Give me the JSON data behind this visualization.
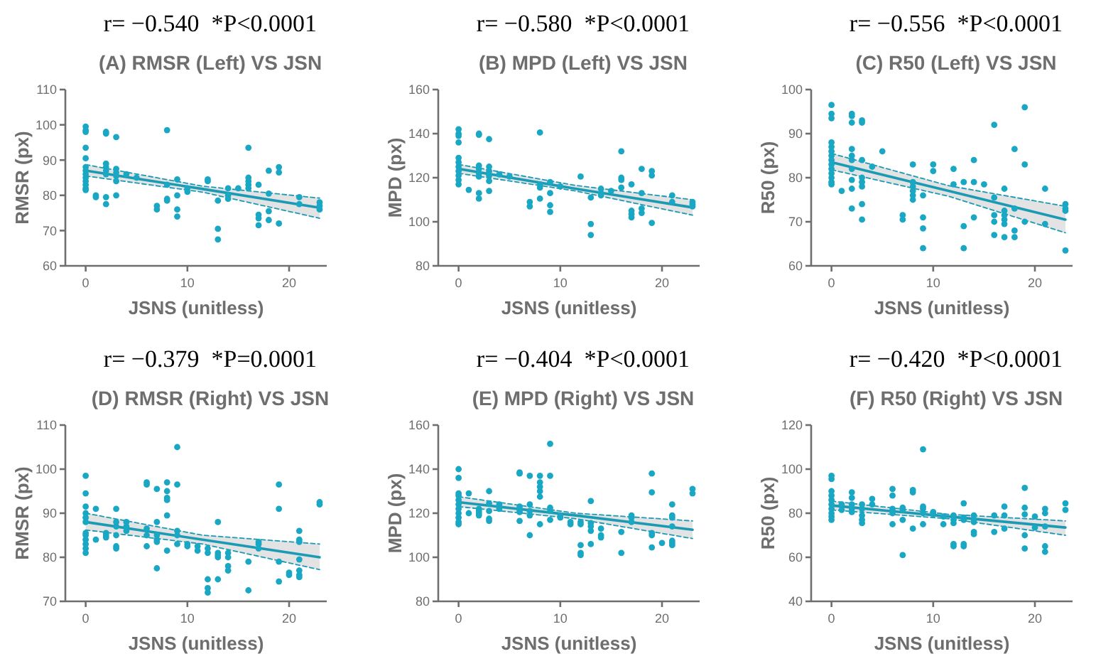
{
  "chart_data": [
    {
      "type": "scatter",
      "title": "r= −0.540  *P<0.0001",
      "subtitle": "(A) RMSR (Left) VS JSN",
      "xlabel": "JSNS (unitless)",
      "ylabel": "RMSR (px)",
      "xlim": [
        -2,
        23.7
      ],
      "xticks": [
        0,
        10,
        20
      ],
      "ylim": [
        60,
        110
      ],
      "yticks": [
        60,
        70,
        80,
        90,
        100,
        110
      ],
      "marker": "circle",
      "series": [
        {
          "type": "scatter",
          "color": "#1aa7c4",
          "x": [
            0,
            0,
            0,
            0,
            0,
            0,
            0,
            0,
            0,
            0,
            0,
            0,
            0,
            1,
            1,
            2,
            2,
            2,
            2,
            2,
            2,
            2,
            2,
            3,
            3,
            3,
            3,
            3,
            3,
            4,
            5,
            7,
            7,
            8,
            8,
            8,
            8,
            9,
            9,
            9,
            9,
            10,
            10,
            12,
            12,
            13,
            13,
            13,
            14,
            14,
            14,
            15,
            16,
            16,
            16,
            16,
            16,
            17,
            17,
            17,
            17,
            18,
            18,
            18,
            18,
            19,
            19,
            19,
            21,
            21,
            23,
            23,
            23
          ],
          "values": [
            99.5,
            98.5,
            98,
            93.5,
            90.5,
            88,
            87,
            86,
            85,
            84,
            83,
            82,
            81.5,
            80,
            79.5,
            98,
            97.5,
            89,
            88,
            87,
            86,
            79.5,
            77.5,
            96.5,
            87.5,
            86.5,
            85.5,
            84,
            80,
            86,
            85,
            77,
            76,
            98.5,
            83,
            79,
            78.5,
            84.5,
            80,
            76,
            74,
            82,
            81,
            84.5,
            84,
            78.5,
            70.5,
            67.5,
            82,
            80,
            79,
            82,
            93.5,
            85,
            84,
            83,
            82,
            83,
            74.5,
            73.5,
            71.5,
            87,
            80.5,
            75.5,
            73,
            88,
            86.5,
            72,
            79.5,
            77.5,
            78,
            77,
            76
          ]
        },
        {
          "type": "line",
          "color": "#1b9ab4",
          "marker": "none",
          "x": [
            0,
            11.5,
            23
          ],
          "values": [
            87,
            81.8,
            76.5
          ],
          "lower": [
            85.5,
            80.9,
            73.5
          ],
          "upper": [
            88.7,
            82.6,
            79.2
          ]
        },
        {
          "type": "line",
          "color": "#1b9ab4",
          "marker": "none",
          "line_style": "dashed",
          "x": [
            0,
            11.5,
            23
          ],
          "values": [
            85.5,
            80.9,
            73.5
          ]
        },
        {
          "type": "line",
          "color": "#1b9ab4",
          "marker": "none",
          "line_style": "dashed",
          "x": [
            0,
            11.5,
            23
          ],
          "values": [
            88.7,
            82.6,
            79.2
          ]
        }
      ]
    },
    {
      "type": "scatter",
      "title": "r= −0.580  *P<0.0001",
      "subtitle": "(B) MPD (Left) VS JSN",
      "xlabel": "JSNS (unitless)",
      "ylabel": "MPD (px)",
      "xlim": [
        -2,
        23.7
      ],
      "xticks": [
        0,
        10,
        20
      ],
      "ylim": [
        80,
        160
      ],
      "yticks": [
        80,
        100,
        120,
        140,
        160
      ],
      "marker": "circle",
      "series": [
        {
          "type": "scatter",
          "color": "#1aa7c4",
          "x": [
            0,
            0,
            0,
            0,
            0,
            0,
            0,
            0,
            0,
            0,
            0,
            1,
            2,
            2,
            2,
            2,
            2,
            2,
            2,
            2,
            3,
            3,
            3,
            3,
            3,
            3,
            4,
            5,
            7,
            7,
            8,
            8,
            8,
            8,
            9,
            9,
            9,
            9,
            10,
            12,
            13,
            13,
            13,
            14,
            14,
            14,
            15,
            16,
            16,
            16,
            16,
            17,
            17,
            17,
            17,
            18,
            18,
            18,
            18,
            19,
            19,
            19,
            21,
            21,
            23,
            23,
            23
          ],
          "values": [
            142,
            140,
            139,
            136,
            129,
            127,
            125,
            123,
            121,
            119,
            117,
            114.5,
            140,
            139.5,
            125.5,
            124,
            122,
            120.5,
            113,
            110.5,
            137.5,
            125,
            123,
            121,
            118.5,
            114,
            121.5,
            120.5,
            109,
            107,
            140.5,
            117,
            115.5,
            110.5,
            118,
            113,
            107.5,
            104.5,
            116,
            120.5,
            111,
            99,
            94,
            115,
            113,
            112,
            114,
            132,
            120,
            119,
            115.5,
            117,
            105,
            103.5,
            102,
            124,
            113,
            106,
            104,
            123,
            121,
            99.5,
            112,
            109,
            109,
            108,
            107
          ]
        },
        {
          "type": "line",
          "color": "#1b9ab4",
          "marker": "none",
          "x": [
            0,
            11.5,
            23
          ],
          "values": [
            124,
            115,
            106.5
          ],
          "lower": [
            122,
            114,
            103
          ],
          "upper": [
            126,
            116.5,
            110
          ]
        },
        {
          "type": "line",
          "color": "#1b9ab4",
          "marker": "none",
          "line_style": "dashed",
          "x": [
            0,
            11.5,
            23
          ],
          "values": [
            122,
            114,
            103
          ]
        },
        {
          "type": "line",
          "color": "#1b9ab4",
          "marker": "none",
          "line_style": "dashed",
          "x": [
            0,
            11.5,
            23
          ],
          "values": [
            126,
            116.5,
            110
          ]
        }
      ]
    },
    {
      "type": "scatter",
      "title": "r= −0.556  *P<0.0001",
      "subtitle": "(C) R50 (Left) VS JSN",
      "xlabel": "JSNS (unitless)",
      "ylabel": "R50 (px)",
      "xlim": [
        -2,
        23.7
      ],
      "xticks": [
        0,
        10,
        20
      ],
      "ylim": [
        60,
        100
      ],
      "yticks": [
        60,
        70,
        80,
        90,
        100
      ],
      "marker": "circle",
      "series": [
        {
          "type": "scatter",
          "color": "#1aa7c4",
          "x": [
            0,
            0,
            0,
            0,
            0,
            0,
            0,
            0,
            0,
            0,
            0,
            0,
            0,
            0,
            1,
            2,
            2,
            2,
            2,
            2,
            2,
            2,
            2,
            2,
            2,
            3,
            3,
            3,
            3,
            3,
            3,
            3,
            3,
            4,
            5,
            7,
            7,
            8,
            8,
            8,
            8,
            8,
            8,
            9,
            9,
            9,
            9,
            10,
            10,
            12,
            12,
            13,
            13,
            13,
            14,
            14,
            14,
            15,
            16,
            16,
            16,
            16,
            16,
            17,
            17,
            17,
            17,
            17,
            17,
            18,
            18,
            18,
            18,
            19,
            19,
            19,
            21,
            21,
            23,
            23,
            23,
            23
          ],
          "values": [
            96.5,
            94.5,
            93.5,
            88,
            87,
            86,
            85,
            84,
            83,
            82,
            81,
            80,
            79,
            78.5,
            77,
            94.5,
            94,
            92.5,
            86.5,
            85,
            84,
            82,
            79.5,
            77.5,
            73,
            93,
            92.5,
            84,
            80,
            79,
            78,
            74,
            70.5,
            82.5,
            86,
            71.5,
            70.5,
            83,
            79,
            78,
            77,
            76,
            75,
            76,
            71,
            68.5,
            64,
            83,
            81.5,
            82,
            78.5,
            79,
            69,
            64,
            84,
            79,
            71,
            78.5,
            92,
            75.5,
            71.5,
            70,
            67,
            77.5,
            72.5,
            71.5,
            70.5,
            69.5,
            66.5,
            86.5,
            73,
            68,
            66.5,
            96,
            83,
            70,
            77.5,
            69.5,
            74,
            73,
            72.5,
            63.5
          ]
        },
        {
          "type": "line",
          "color": "#1b9ab4",
          "marker": "none",
          "x": [
            0,
            11.5,
            23
          ],
          "values": [
            83.5,
            77,
            70.5
          ],
          "lower": [
            81.8,
            75.8,
            67.5
          ],
          "upper": [
            85.5,
            78.2,
            73.5
          ]
        },
        {
          "type": "line",
          "color": "#1b9ab4",
          "marker": "none",
          "line_style": "dashed",
          "x": [
            0,
            11.5,
            23
          ],
          "values": [
            81.8,
            75.8,
            67.5
          ]
        },
        {
          "type": "line",
          "color": "#1b9ab4",
          "marker": "none",
          "line_style": "dashed",
          "x": [
            0,
            11.5,
            23
          ],
          "values": [
            85.5,
            78.2,
            73.5
          ]
        }
      ]
    },
    {
      "type": "scatter",
      "title": "r= −0.379  *P=0.0001",
      "subtitle": "(D) RMSR (Right) VS JSN",
      "xlabel": "JSNS (unitless)",
      "ylabel": "RMSR (px)",
      "xlim": [
        -2,
        23.7
      ],
      "xticks": [
        0,
        10,
        20
      ],
      "ylim": [
        70,
        110
      ],
      "yticks": [
        70,
        80,
        90,
        100,
        110
      ],
      "marker": "circle",
      "series": [
        {
          "type": "scatter",
          "color": "#1aa7c4",
          "x": [
            0,
            0,
            0,
            0,
            0,
            0,
            0,
            0,
            0,
            0,
            0,
            0,
            1,
            1,
            2,
            2,
            2,
            3,
            3,
            3,
            3,
            3,
            3,
            4,
            4,
            4,
            6,
            6,
            6,
            6,
            6,
            7,
            7,
            7,
            7,
            7,
            7,
            8,
            8,
            8,
            8,
            8,
            8,
            9,
            9,
            9,
            9,
            9,
            10,
            10,
            11,
            11,
            12,
            12,
            12,
            12,
            12,
            13,
            13,
            13,
            13,
            13,
            14,
            14,
            14,
            14,
            16,
            16,
            17,
            17,
            17,
            19,
            19,
            19,
            19,
            20,
            20,
            21,
            21,
            21,
            21,
            21,
            21,
            21,
            23,
            23
          ],
          "values": [
            98.5,
            94.5,
            91.5,
            90,
            89,
            88,
            85.5,
            85,
            84,
            83,
            82,
            81,
            91,
            84,
            85.5,
            85,
            84.5,
            91,
            88,
            87,
            85,
            82.5,
            82,
            88,
            87,
            86,
            97,
            96.5,
            86.5,
            85,
            82.5,
            95.5,
            88,
            85,
            84,
            83.5,
            77.5,
            97,
            95,
            93.5,
            93,
            89.5,
            81.5,
            105,
            96.5,
            86,
            85,
            83,
            83,
            82.5,
            82.5,
            81.5,
            82,
            81,
            75,
            73,
            72,
            88,
            81,
            80.5,
            80,
            75,
            81,
            80,
            78,
            77,
            79,
            72.5,
            83.5,
            83,
            82,
            96.5,
            91,
            79,
            74.5,
            76.5,
            76,
            86,
            84,
            83.5,
            79.5,
            77,
            76,
            75.5,
            92.5,
            92
          ]
        },
        {
          "type": "line",
          "color": "#1b9ab4",
          "marker": "none",
          "x": [
            0,
            11.5,
            23
          ],
          "values": [
            88,
            84,
            80
          ],
          "lower": [
            86.2,
            83,
            77.2
          ],
          "upper": [
            90,
            85,
            83
          ]
        },
        {
          "type": "line",
          "color": "#1b9ab4",
          "marker": "none",
          "line_style": "dashed",
          "x": [
            0,
            11.5,
            23
          ],
          "values": [
            86.2,
            83,
            77.2
          ]
        },
        {
          "type": "line",
          "color": "#1b9ab4",
          "marker": "none",
          "line_style": "dashed",
          "x": [
            0,
            11.5,
            23
          ],
          "values": [
            90,
            85,
            83
          ]
        }
      ]
    },
    {
      "type": "scatter",
      "title": "r= −0.404  *P<0.0001",
      "subtitle": "(E) MPD (Right) VS JSN",
      "xlabel": "JSNS (unitless)",
      "ylabel": "MPD (px)",
      "xlim": [
        -2,
        23.7
      ],
      "xticks": [
        0,
        10,
        20
      ],
      "ylim": [
        80,
        160
      ],
      "yticks": [
        80,
        100,
        120,
        140,
        160
      ],
      "marker": "circle",
      "series": [
        {
          "type": "scatter",
          "color": "#1aa7c4",
          "x": [
            0,
            0,
            0,
            0,
            0,
            0,
            0,
            0,
            0,
            0,
            0,
            1,
            1,
            2,
            2,
            2,
            2,
            3,
            3,
            3,
            3,
            3,
            4,
            4,
            4,
            6,
            6,
            6,
            6,
            6,
            6,
            7,
            7,
            7,
            7,
            7,
            8,
            8,
            8,
            8,
            8,
            8,
            9,
            9,
            9,
            9,
            9,
            10,
            10,
            11,
            11,
            12,
            12,
            12,
            12,
            12,
            13,
            13,
            13,
            13,
            13,
            14,
            14,
            14,
            16,
            16,
            17,
            17,
            17,
            19,
            19,
            19,
            19,
            19,
            20,
            21,
            21,
            21,
            21,
            21,
            21,
            21,
            23,
            23
          ],
          "values": [
            140,
            136,
            129,
            128,
            126,
            124,
            122,
            120,
            118,
            116,
            115,
            129,
            120,
            122,
            121,
            120,
            119,
            130,
            124.5,
            121,
            117.5,
            116.5,
            124,
            123,
            122,
            138.5,
            138,
            123,
            121.5,
            120.5,
            116.5,
            137,
            124,
            121,
            119,
            110,
            137,
            134,
            132,
            130,
            127.5,
            115,
            151.5,
            137,
            122.5,
            121,
            117,
            119,
            118,
            116,
            115,
            116,
            115,
            105.5,
            102,
            101,
            125.5,
            115.5,
            114,
            112,
            106,
            113,
            110,
            109,
            111.5,
            102,
            119,
            118,
            116,
            138,
            129.5,
            111,
            110,
            104.5,
            106.5,
            124,
            119,
            118,
            114,
            107.5,
            106.5,
            105.5,
            131,
            129
          ]
        },
        {
          "type": "line",
          "color": "#1b9ab4",
          "marker": "none",
          "x": [
            0,
            11.5,
            23
          ],
          "values": [
            125,
            119,
            112.5
          ],
          "lower": [
            123,
            117.5,
            108.5
          ],
          "upper": [
            127.5,
            120,
            116.5
          ]
        },
        {
          "type": "line",
          "color": "#1b9ab4",
          "marker": "none",
          "line_style": "dashed",
          "x": [
            0,
            11.5,
            23
          ],
          "values": [
            123,
            117.5,
            108.5
          ]
        },
        {
          "type": "line",
          "color": "#1b9ab4",
          "marker": "none",
          "line_style": "dashed",
          "x": [
            0,
            11.5,
            23
          ],
          "values": [
            127.5,
            120,
            116.5
          ]
        }
      ]
    },
    {
      "type": "scatter",
      "title": "r= −0.420  *P<0.0001",
      "subtitle": "(F) R50 (Right) VS JSN",
      "xlabel": "JSNS (unitless)",
      "ylabel": "R50 (px)",
      "xlim": [
        -2,
        23.7
      ],
      "xticks": [
        0,
        10,
        20
      ],
      "ylim": [
        40,
        120
      ],
      "yticks": [
        40,
        60,
        80,
        100,
        120
      ],
      "marker": "circle",
      "series": [
        {
          "type": "scatter",
          "color": "#1aa7c4",
          "x": [
            0,
            0,
            0,
            0,
            0,
            0,
            0,
            0,
            0,
            0,
            1,
            1,
            2,
            2,
            2,
            2,
            2,
            3,
            3,
            3,
            3,
            3,
            4,
            4,
            6,
            6,
            6,
            6,
            6,
            6,
            7,
            7,
            7,
            7,
            8,
            8,
            8,
            9,
            9,
            9,
            9,
            9,
            10,
            10,
            11,
            11,
            12,
            12,
            12,
            12,
            12,
            13,
            13,
            13,
            13,
            13,
            14,
            14,
            14,
            14,
            14,
            16,
            16,
            17,
            17,
            17,
            19,
            19,
            19,
            19,
            19,
            20,
            20,
            21,
            21,
            21,
            21,
            21,
            23,
            23
          ],
          "values": [
            97,
            95.5,
            90,
            88,
            86,
            84,
            82,
            80,
            78.5,
            77,
            84,
            81.5,
            89.5,
            87,
            84,
            82,
            80.5,
            84,
            82,
            79,
            77,
            75.5,
            86.5,
            84,
            91,
            88,
            82,
            81,
            80,
            75,
            82.5,
            81.5,
            77,
            61,
            90.5,
            89.5,
            73,
            109,
            83,
            82,
            80,
            75,
            80.5,
            79.5,
            78.5,
            75,
            79,
            77,
            75.5,
            66,
            65,
            84.5,
            78,
            77,
            66,
            65,
            79,
            77,
            76,
            71.5,
            70.5,
            79,
            71.5,
            83,
            79,
            73,
            91.5,
            82.5,
            79.5,
            70,
            64,
            78.5,
            73.5,
            82,
            80,
            74,
            65,
            62.5,
            84.5,
            81.5
          ]
        },
        {
          "type": "line",
          "color": "#1b9ab4",
          "marker": "none",
          "x": [
            0,
            11.5,
            23
          ],
          "values": [
            83.5,
            78.5,
            73.5
          ],
          "lower": [
            81.5,
            77.5,
            70
          ],
          "upper": [
            85.5,
            79.5,
            76.5
          ]
        },
        {
          "type": "line",
          "color": "#1b9ab4",
          "marker": "none",
          "line_style": "dashed",
          "x": [
            0,
            11.5,
            23
          ],
          "values": [
            81.5,
            77.5,
            70
          ]
        },
        {
          "type": "line",
          "color": "#1b9ab4",
          "marker": "none",
          "line_style": "dashed",
          "x": [
            0,
            11.5,
            23
          ],
          "values": [
            85.5,
            79.5,
            76.5
          ]
        }
      ]
    }
  ]
}
